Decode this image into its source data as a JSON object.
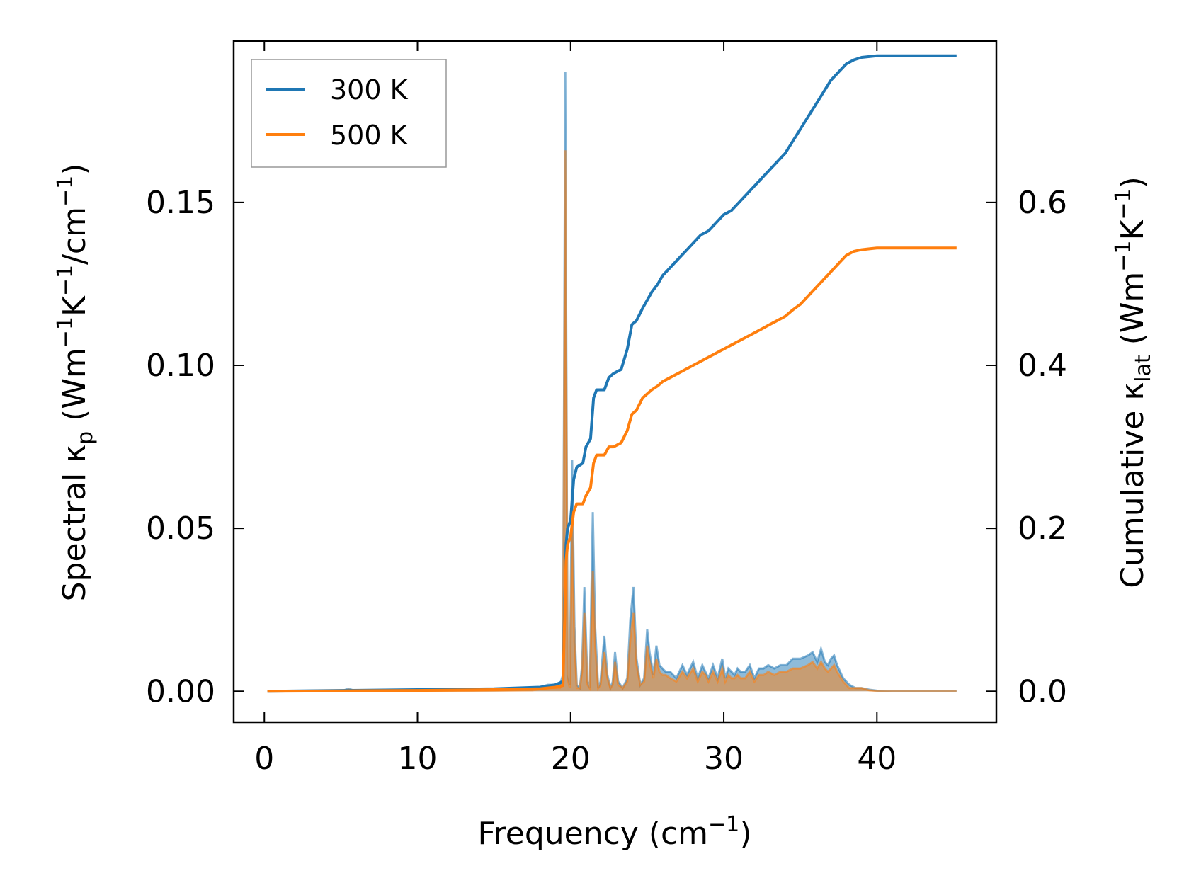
{
  "chart_data": {
    "type": "line",
    "xlabel": "Frequency (cm",
    "xlabel_sup": "−1",
    "xlabel_end": ")",
    "ylabel_left": {
      "a": "Spectral κ",
      "sub": "p",
      "b": " (Wm",
      "sup1": "−1",
      "c": "K",
      "sup2": "−1",
      "d": "/cm",
      "sup3": "−1",
      "e": ")"
    },
    "ylabel_right": {
      "a": "Cumulative κ",
      "sub": "lat",
      "b": " (Wm",
      "sup1": "−1",
      "c": "K",
      "sup2": "−1",
      "d": ")"
    },
    "xlim": [
      -2,
      47.8
    ],
    "ylim_left": [
      -0.0095,
      0.1995
    ],
    "ylim_right": [
      -0.038,
      0.798
    ],
    "xticks": [
      "0",
      "10",
      "20",
      "30",
      "40"
    ],
    "xtick_values": [
      0,
      10,
      20,
      30,
      40
    ],
    "yticks_left": [
      "0.00",
      "0.05",
      "0.10",
      "0.15"
    ],
    "ytick_values_left": [
      0,
      0.05,
      0.1,
      0.15
    ],
    "yticks_right": [
      "0.0",
      "0.2",
      "0.4",
      "0.6"
    ],
    "ytick_values_right": [
      0,
      0.2,
      0.4,
      0.6
    ],
    "legend_position": "upper-left",
    "colors": {
      "s300": "#1f77b4",
      "s500": "#ff7f0e"
    },
    "series": [
      {
        "name": "300 K",
        "axis": "right",
        "kind": "cumulative",
        "x": [
          0.2,
          5,
          10,
          15,
          18,
          19,
          19.5,
          19.7,
          19.8,
          20.0,
          20.2,
          20.4,
          20.8,
          21.0,
          21.3,
          21.5,
          21.7,
          22.2,
          22.5,
          22.8,
          23.3,
          23.7,
          24.0,
          24.3,
          24.7,
          25.0,
          25.3,
          25.7,
          26.0,
          26.5,
          27.0,
          27.5,
          28.0,
          28.5,
          29.0,
          29.5,
          30.0,
          30.5,
          31.0,
          31.5,
          32.0,
          32.5,
          33.0,
          33.5,
          34.0,
          34.5,
          35.0,
          35.5,
          36.0,
          36.5,
          37.0,
          37.5,
          38.0,
          38.5,
          39.0,
          39.5,
          40.0,
          42.0,
          45.2
        ],
        "y": [
          0,
          0.001,
          0.002,
          0.003,
          0.005,
          0.008,
          0.012,
          0.18,
          0.2,
          0.21,
          0.26,
          0.275,
          0.28,
          0.3,
          0.31,
          0.36,
          0.37,
          0.37,
          0.385,
          0.39,
          0.395,
          0.42,
          0.45,
          0.455,
          0.47,
          0.48,
          0.49,
          0.5,
          0.51,
          0.52,
          0.53,
          0.54,
          0.55,
          0.56,
          0.565,
          0.575,
          0.585,
          0.59,
          0.6,
          0.61,
          0.62,
          0.63,
          0.64,
          0.65,
          0.66,
          0.675,
          0.69,
          0.705,
          0.72,
          0.735,
          0.75,
          0.76,
          0.77,
          0.775,
          0.778,
          0.779,
          0.78,
          0.78,
          0.78
        ]
      },
      {
        "name": "500 K",
        "axis": "right",
        "kind": "cumulative",
        "x": [
          0.2,
          5,
          10,
          15,
          18,
          19,
          19.5,
          19.7,
          19.8,
          20.0,
          20.2,
          20.4,
          20.8,
          21.0,
          21.3,
          21.5,
          21.7,
          22.2,
          22.5,
          22.8,
          23.3,
          23.7,
          24.0,
          24.3,
          24.7,
          25.0,
          25.3,
          25.7,
          26.0,
          26.5,
          27.0,
          27.5,
          28.0,
          28.5,
          29.0,
          29.5,
          30.0,
          30.5,
          31.0,
          31.5,
          32.0,
          32.5,
          33.0,
          33.5,
          34.0,
          34.5,
          35.0,
          35.5,
          36.0,
          36.5,
          37.0,
          37.5,
          38.0,
          38.5,
          39.0,
          39.5,
          40.0,
          42.0,
          45.2
        ],
        "y": [
          0,
          0.0005,
          0.001,
          0.002,
          0.003,
          0.005,
          0.007,
          0.16,
          0.18,
          0.19,
          0.22,
          0.23,
          0.23,
          0.24,
          0.25,
          0.28,
          0.29,
          0.29,
          0.3,
          0.3,
          0.305,
          0.32,
          0.34,
          0.345,
          0.36,
          0.365,
          0.37,
          0.375,
          0.38,
          0.385,
          0.39,
          0.395,
          0.4,
          0.405,
          0.41,
          0.415,
          0.42,
          0.425,
          0.43,
          0.435,
          0.44,
          0.445,
          0.45,
          0.455,
          0.46,
          0.468,
          0.475,
          0.485,
          0.495,
          0.505,
          0.515,
          0.525,
          0.535,
          0.54,
          0.542,
          0.543,
          0.544,
          0.544,
          0.544
        ]
      },
      {
        "name": "300 K",
        "axis": "left",
        "kind": "spectral",
        "x": [
          0.2,
          5,
          5.5,
          6,
          10,
          15,
          17.5,
          18.5,
          19.3,
          19.5,
          19.65,
          19.8,
          19.95,
          20.1,
          20.25,
          20.4,
          20.6,
          20.75,
          20.9,
          21.1,
          21.25,
          21.45,
          21.6,
          21.8,
          21.95,
          22.2,
          22.4,
          22.6,
          22.75,
          22.9,
          23.1,
          23.4,
          23.7,
          23.9,
          24.1,
          24.3,
          24.55,
          24.8,
          25.0,
          25.15,
          25.4,
          25.6,
          25.8,
          26.0,
          26.2,
          26.5,
          26.9,
          27.3,
          27.6,
          28.0,
          28.3,
          28.6,
          28.8,
          29.0,
          29.3,
          29.6,
          29.9,
          30.1,
          30.3,
          30.5,
          30.7,
          30.9,
          31.1,
          31.4,
          31.7,
          32.0,
          32.3,
          32.6,
          32.9,
          33.3,
          33.7,
          34.1,
          34.5,
          35.0,
          35.5,
          35.8,
          36.1,
          36.35,
          36.6,
          36.8,
          37.0,
          37.2,
          37.4,
          37.8,
          38.2,
          38.6,
          39.0,
          39.5,
          40.0,
          41.0,
          43.0,
          45.2
        ],
        "y": [
          0,
          0,
          0.0008,
          0,
          0.0002,
          0.0003,
          0.0005,
          0.002,
          0.002,
          0.005,
          0.19,
          0.005,
          0.002,
          0.071,
          0.02,
          0.002,
          0.001,
          0.008,
          0.032,
          0.003,
          0.001,
          0.055,
          0.02,
          0.001,
          0.003,
          0.017,
          0.005,
          0.001,
          0.003,
          0.012,
          0.003,
          0.001,
          0.004,
          0.022,
          0.032,
          0.01,
          0.002,
          0.004,
          0.019,
          0.012,
          0.005,
          0.014,
          0.008,
          0.007,
          0.006,
          0.006,
          0.004,
          0.008,
          0.005,
          0.009,
          0.004,
          0.008,
          0.006,
          0.004,
          0.008,
          0.004,
          0.01,
          0.004,
          0.007,
          0.006,
          0.005,
          0.007,
          0.006,
          0.006,
          0.008,
          0.004,
          0.007,
          0.007,
          0.008,
          0.007,
          0.008,
          0.008,
          0.01,
          0.01,
          0.011,
          0.012,
          0.009,
          0.013,
          0.009,
          0.008,
          0.01,
          0.011,
          0.008,
          0.004,
          0.002,
          0.001,
          0.001,
          0.0005,
          0.0002,
          0,
          0,
          0
        ]
      },
      {
        "name": "500 K",
        "axis": "left",
        "kind": "spectral",
        "x": [
          0.2,
          5,
          5.5,
          6,
          10,
          15,
          17.5,
          18.5,
          19.3,
          19.5,
          19.65,
          19.8,
          19.95,
          20.1,
          20.25,
          20.4,
          20.6,
          20.75,
          20.9,
          21.1,
          21.25,
          21.45,
          21.6,
          21.8,
          21.95,
          22.2,
          22.4,
          22.6,
          22.75,
          22.9,
          23.1,
          23.4,
          23.7,
          23.9,
          24.1,
          24.3,
          24.55,
          24.8,
          25.0,
          25.15,
          25.4,
          25.6,
          25.8,
          26.0,
          26.2,
          26.5,
          26.9,
          27.3,
          27.6,
          28.0,
          28.3,
          28.6,
          28.8,
          29.0,
          29.3,
          29.6,
          29.9,
          30.1,
          30.3,
          30.5,
          30.7,
          30.9,
          31.1,
          31.4,
          31.7,
          32.0,
          32.3,
          32.6,
          32.9,
          33.3,
          33.7,
          34.1,
          34.5,
          35.0,
          35.5,
          35.8,
          36.1,
          36.35,
          36.6,
          36.8,
          37.0,
          37.2,
          37.4,
          37.8,
          38.2,
          38.6,
          39.0,
          39.5,
          40.0,
          41.0,
          43.0,
          45.2
        ],
        "y": [
          0,
          0,
          0.0005,
          0,
          0.0001,
          0.0002,
          0.0003,
          0.001,
          0.001,
          0.003,
          0.166,
          0.004,
          0.001,
          0.05,
          0.015,
          0.001,
          0.001,
          0.006,
          0.024,
          0.002,
          0.001,
          0.037,
          0.014,
          0.001,
          0.002,
          0.012,
          0.004,
          0.001,
          0.002,
          0.009,
          0.002,
          0.001,
          0.003,
          0.016,
          0.024,
          0.008,
          0.002,
          0.003,
          0.014,
          0.009,
          0.004,
          0.01,
          0.006,
          0.005,
          0.005,
          0.004,
          0.003,
          0.006,
          0.004,
          0.007,
          0.003,
          0.006,
          0.005,
          0.003,
          0.006,
          0.003,
          0.007,
          0.003,
          0.005,
          0.004,
          0.004,
          0.005,
          0.004,
          0.004,
          0.006,
          0.003,
          0.005,
          0.005,
          0.006,
          0.005,
          0.006,
          0.006,
          0.007,
          0.007,
          0.008,
          0.009,
          0.007,
          0.009,
          0.007,
          0.006,
          0.007,
          0.008,
          0.006,
          0.003,
          0.001,
          0.001,
          0.001,
          0.0003,
          0.0001,
          0,
          0,
          0
        ]
      }
    ]
  }
}
